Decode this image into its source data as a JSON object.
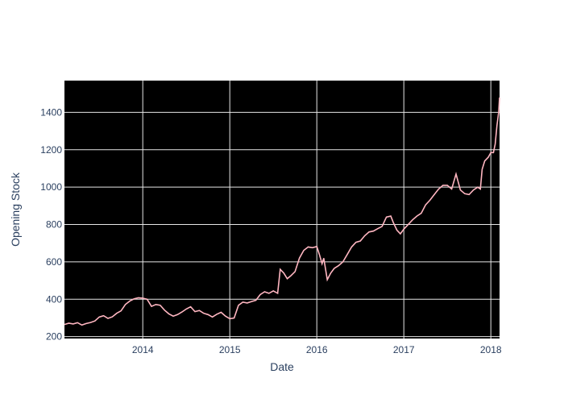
{
  "chart_data": {
    "type": "line",
    "title": "",
    "xlabel": "Date",
    "ylabel": "Opening Stock",
    "line_color": "#ffb6c1",
    "plot_background": "#000000",
    "grid_color": "#e6e6e6",
    "text_color": "#2a3f5f",
    "xlim": [
      2013.1,
      2018.1
    ],
    "ylim": [
      190,
      1570
    ],
    "x_ticks": [
      2014,
      2015,
      2016,
      2017,
      2018
    ],
    "x_tick_labels": [
      "2014",
      "2015",
      "2016",
      "2017",
      "2018"
    ],
    "y_ticks": [
      200,
      400,
      600,
      800,
      1000,
      1200,
      1400
    ],
    "y_tick_labels": [
      "200",
      "400",
      "600",
      "800",
      "1000",
      "1200",
      "1400"
    ],
    "series": [
      {
        "name": "Opening Stock",
        "x": [
          2013.1,
          2013.15,
          2013.2,
          2013.25,
          2013.3,
          2013.35,
          2013.4,
          2013.45,
          2013.5,
          2013.55,
          2013.6,
          2013.65,
          2013.7,
          2013.75,
          2013.8,
          2013.85,
          2013.9,
          2013.95,
          2014.0,
          2014.05,
          2014.1,
          2014.15,
          2014.2,
          2014.25,
          2014.3,
          2014.35,
          2014.4,
          2014.45,
          2014.5,
          2014.55,
          2014.6,
          2014.65,
          2014.7,
          2014.75,
          2014.8,
          2014.85,
          2014.9,
          2014.95,
          2015.0,
          2015.05,
          2015.1,
          2015.15,
          2015.2,
          2015.25,
          2015.3,
          2015.35,
          2015.4,
          2015.45,
          2015.5,
          2015.55,
          2015.58,
          2015.62,
          2015.66,
          2015.7,
          2015.75,
          2015.8,
          2015.85,
          2015.9,
          2015.95,
          2016.0,
          2016.03,
          2016.06,
          2016.08,
          2016.12,
          2016.16,
          2016.2,
          2016.25,
          2016.3,
          2016.35,
          2016.4,
          2016.45,
          2016.5,
          2016.55,
          2016.6,
          2016.65,
          2016.7,
          2016.75,
          2016.8,
          2016.85,
          2016.88,
          2016.92,
          2016.96,
          2017.0,
          2017.05,
          2017.1,
          2017.15,
          2017.2,
          2017.25,
          2017.3,
          2017.35,
          2017.4,
          2017.45,
          2017.5,
          2017.55,
          2017.6,
          2017.65,
          2017.7,
          2017.75,
          2017.8,
          2017.85,
          2017.88,
          2017.9,
          2017.93,
          2017.97,
          2018.0,
          2018.03,
          2018.05,
          2018.07,
          2018.09,
          2018.1
        ],
        "values": [
          265,
          272,
          268,
          275,
          262,
          270,
          276,
          284,
          305,
          312,
          298,
          306,
          325,
          338,
          372,
          390,
          402,
          408,
          406,
          400,
          362,
          372,
          368,
          342,
          322,
          310,
          318,
          332,
          348,
          360,
          334,
          340,
          325,
          318,
          305,
          320,
          330,
          310,
          296,
          300,
          368,
          385,
          380,
          388,
          395,
          425,
          440,
          432,
          445,
          432,
          560,
          540,
          510,
          525,
          548,
          620,
          662,
          680,
          676,
          682,
          640,
          590,
          620,
          505,
          540,
          565,
          580,
          600,
          640,
          680,
          705,
          712,
          740,
          760,
          765,
          778,
          790,
          840,
          845,
          810,
          770,
          750,
          775,
          800,
          825,
          845,
          860,
          905,
          930,
          960,
          990,
          1010,
          1010,
          990,
          1070,
          985,
          965,
          960,
          985,
          1000,
          990,
          1095,
          1140,
          1160,
          1185,
          1185,
          1230,
          1330,
          1400,
          1480
        ]
      }
    ]
  }
}
